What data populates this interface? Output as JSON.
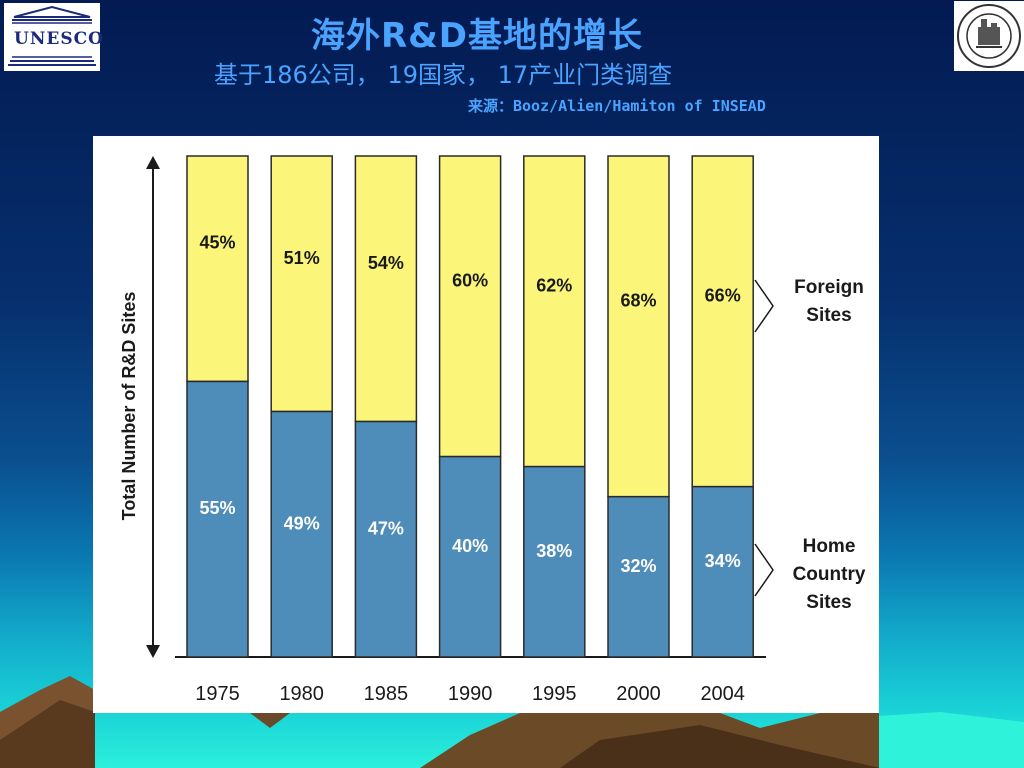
{
  "header": {
    "title": "海外R&D基地的增长",
    "subtitle": "基于186公司， 19国家， 17产业门类调查",
    "source": "来源：Booz/Alien/Hamiton of INSEAD"
  },
  "logos": {
    "left_text": "UNESCO",
    "left_icon": "unesco-temple-icon",
    "right_icon": "university-seal-icon"
  },
  "colors": {
    "foreign": "#fbf67a",
    "home": "#4e8cba",
    "title_text": "#4aa3ff",
    "outline": "#2a2a2a"
  },
  "chart_data": {
    "type": "bar",
    "stacked": true,
    "categories": [
      "1975",
      "1980",
      "1985",
      "1990",
      "1995",
      "2000",
      "2004"
    ],
    "series": [
      {
        "name": "Home Country Sites",
        "values": [
          55,
          49,
          47,
          40,
          38,
          32,
          34
        ]
      },
      {
        "name": "Foreign Sites",
        "values": [
          45,
          51,
          54,
          60,
          62,
          68,
          66
        ]
      }
    ],
    "labels": {
      "home": [
        "55%",
        "49%",
        "47%",
        "40%",
        "38%",
        "32%",
        "34%"
      ],
      "foreign": [
        "45%",
        "51%",
        "54%",
        "60%",
        "62%",
        "68%",
        "66%"
      ]
    },
    "ylabel": "Total Number of R&D Sites",
    "xlabel": "",
    "ylim": [
      0,
      100
    ],
    "legend": {
      "foreign": [
        "Foreign",
        "Sites"
      ],
      "home": [
        "Home",
        "Country",
        "Sites"
      ],
      "placement": "right"
    },
    "grid": false
  }
}
